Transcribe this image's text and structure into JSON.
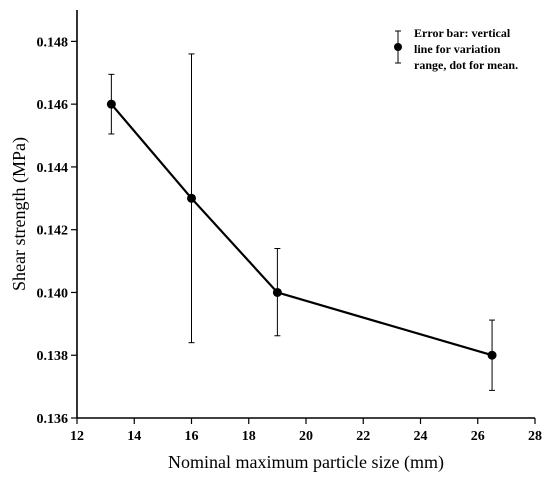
{
  "chart_data": {
    "type": "line",
    "xlabel": "Nominal maximum particle size (mm)",
    "ylabel": "Shear strength (MPa)",
    "xlim": [
      12,
      28
    ],
    "ylim": [
      0.136,
      0.149
    ],
    "xticks": [
      "12",
      "14",
      "16",
      "18",
      "20",
      "22",
      "24",
      "26",
      "28"
    ],
    "yticks": [
      "0.136",
      "0.138",
      "0.140",
      "0.142",
      "0.144",
      "0.146",
      "0.148"
    ],
    "grid": false,
    "legend_position": "top-right",
    "legend_lines": [
      "Error bar: vertical",
      "line for variation",
      "range, dot for mean."
    ],
    "series": [
      {
        "x": [
          13.2,
          16,
          19,
          26.5
        ],
        "y": [
          0.146,
          0.143,
          0.14,
          0.138
        ],
        "err_low": [
          0.14505,
          0.1384,
          0.13862,
          0.13688
        ],
        "err_high": [
          0.14695,
          0.1476,
          0.1414,
          0.13912
        ]
      }
    ]
  }
}
